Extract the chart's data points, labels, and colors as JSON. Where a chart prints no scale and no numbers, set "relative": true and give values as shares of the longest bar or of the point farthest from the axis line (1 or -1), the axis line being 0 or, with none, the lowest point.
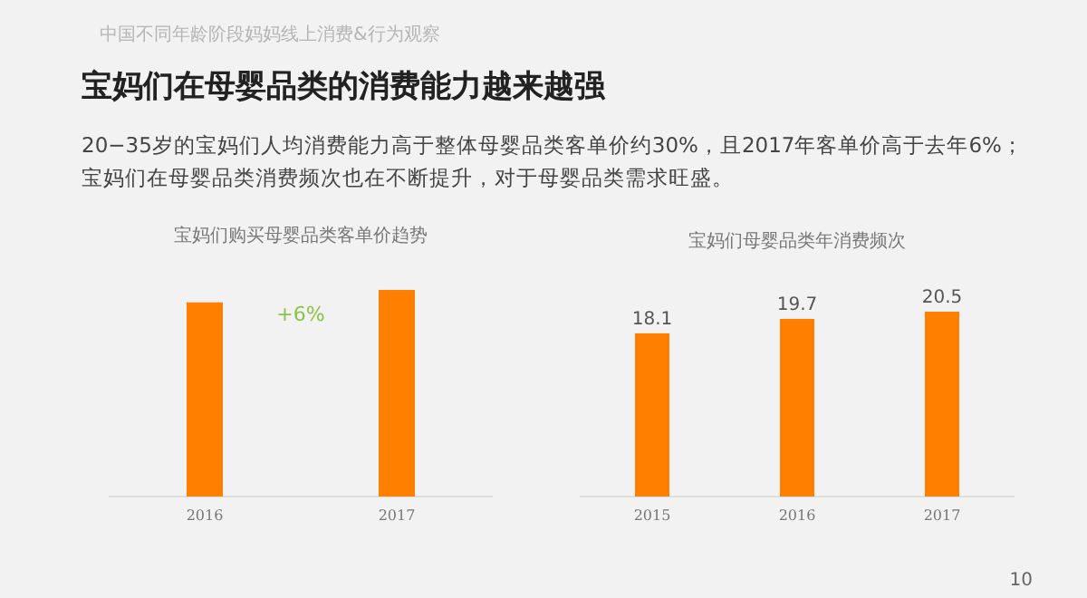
{
  "chart_data": [
    {
      "type": "other",
      "title": "宝妈们在母婴品类的消费能力越来越强",
      "subtitle": "20−35岁的宝妈们人均消费能力高于整体母婴品类客单价约30%，且2017年客单价高于去年6%；宝妈们在母婴品类消费频次也在不断提升，对于母婴品类需求旺盛。",
      "annotations": [
        "中国不同年龄阶段妈妈线上消费&行为观察",
        "10"
      ]
    },
    {
      "type": "bar",
      "title": "宝妈们购买母婴品类客单价趋势",
      "categories": [
        "2016",
        "2017"
      ],
      "values": [
        0.94,
        1
      ],
      "relative": true,
      "color": "#ff8000",
      "annotations": [
        "+6%"
      ]
    },
    {
      "type": "bar",
      "title": "宝妈们母婴品类年消费频次",
      "categories": [
        "2015",
        "2016",
        "2017"
      ],
      "values": [
        18.1,
        19.7,
        20.5
      ],
      "color": "#ff8000",
      "data_labels": true
    }
  ]
}
